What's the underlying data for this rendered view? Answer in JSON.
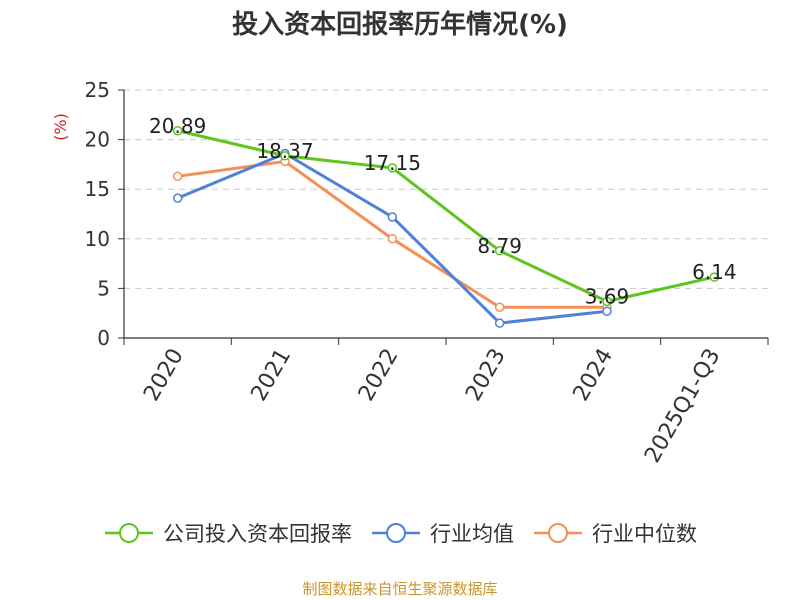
{
  "chart_data": {
    "type": "line",
    "title": "投入资本回报率历年情况(%)",
    "ylabel": "(%)",
    "xlabel": "",
    "ylim": [
      0,
      25
    ],
    "yticks": [
      0,
      5,
      10,
      15,
      20,
      25
    ],
    "categories": [
      "2020",
      "2021",
      "2022",
      "2023",
      "2024",
      "2025Q1-Q3"
    ],
    "grid": true,
    "legend_position": "bottom",
    "series": [
      {
        "name": "公司投入资本回报率",
        "color": "#5fc41f",
        "values": [
          20.89,
          18.37,
          17.15,
          8.79,
          3.69,
          6.14
        ],
        "labels": [
          "20.89",
          "18.37",
          "17.15",
          "8.79",
          "3.69",
          "6.14"
        ]
      },
      {
        "name": "行业均值",
        "color": "#4f81d8",
        "values": [
          14.1,
          18.6,
          12.2,
          1.5,
          2.7,
          null
        ]
      },
      {
        "name": "行业中位数",
        "color": "#f58f58",
        "values": [
          16.3,
          17.8,
          10.0,
          3.1,
          3.1,
          null
        ]
      }
    ]
  },
  "source": "制图数据来自恒生聚源数据库"
}
